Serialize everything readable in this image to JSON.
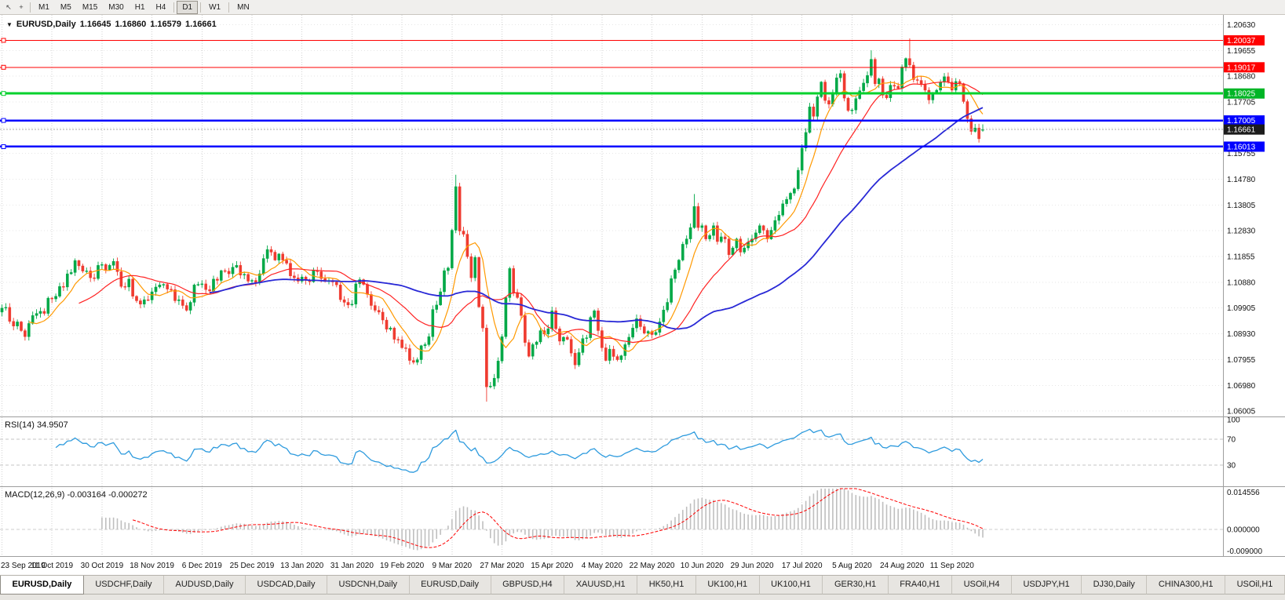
{
  "toolbar": {
    "icons": [
      {
        "name": "cursor-icon",
        "glyph": "↖"
      },
      {
        "name": "crosshair-icon",
        "glyph": "+"
      }
    ],
    "timeframes": [
      {
        "label": "M1",
        "active": false
      },
      {
        "label": "M5",
        "active": false
      },
      {
        "label": "M15",
        "active": false
      },
      {
        "label": "M30",
        "active": false
      },
      {
        "label": "H1",
        "active": false
      },
      {
        "label": "H4",
        "active": false
      },
      {
        "label": "D1",
        "active": true
      },
      {
        "label": "W1",
        "active": false
      },
      {
        "label": "MN",
        "active": false
      }
    ]
  },
  "chart": {
    "title": {
      "symbol_label": "EURUSD,Daily",
      "open": "1.16645",
      "high": "1.16860",
      "low": "1.16579",
      "close": "1.16661"
    },
    "axis": {
      "ticks": [
        "1.20630",
        "1.19655",
        "1.18680",
        "1.17705",
        "1.16730",
        "1.15755",
        "1.14780",
        "1.13805",
        "1.12830",
        "1.11855",
        "1.10880",
        "1.09905",
        "1.08930",
        "1.07955",
        "1.06980",
        "1.06005"
      ],
      "top_price": 1.21,
      "bottom_price": 1.058
    },
    "levels": [
      {
        "value": 1.20037,
        "label": "1.20037",
        "color": "#FF0000",
        "width": 1
      },
      {
        "value": 1.19017,
        "label": "1.19017",
        "color": "#FF0000",
        "width": 1
      },
      {
        "value": 1.18025,
        "label": "1.18025",
        "color": "#00D12C",
        "width": 3
      },
      {
        "value": 1.17005,
        "label": "1.17005",
        "color": "#0000FF",
        "width": 2.5
      },
      {
        "value": 1.16013,
        "label": "1.16013",
        "color": "#0000FF",
        "width": 2.5
      }
    ],
    "current_price": {
      "value": 1.16661,
      "label": "1.16661",
      "color": "#1C1C1C"
    }
  },
  "rsi": {
    "label": "RSI(14) 34.9507",
    "line_color": "#2E9BDE",
    "axis_labels": [
      {
        "value": 100,
        "text": "100",
        "dashed": false
      },
      {
        "value": 70,
        "text": "70",
        "dashed": true
      },
      {
        "value": 30,
        "text": "30",
        "dashed": true
      }
    ]
  },
  "macd": {
    "label": "MACD(12,26,9) -0.003164 -0.000272",
    "histogram_color": "#BFBFBF",
    "signal_color": "#FF0000",
    "axis_labels": [
      {
        "value": 0.014556,
        "text": "0.014556"
      },
      {
        "value": 0,
        "text": "0.000000"
      },
      {
        "value": -0.009,
        "text": "-0.009000"
      }
    ],
    "scale_max": 0.014556,
    "scale_min": -0.009
  },
  "dates": [
    "23 Sep 2019",
    "11 Oct 2019",
    "30 Oct 2019",
    "18 Nov 2019",
    "6 Dec 2019",
    "25 Dec 2019",
    "13 Jan 2020",
    "31 Jan 2020",
    "19 Feb 2020",
    "9 Mar 2020",
    "27 Mar 2020",
    "15 Apr 2020",
    "4 May 2020",
    "22 May 2020",
    "10 Jun 2020",
    "29 Jun 2020",
    "17 Jul 2020",
    "5 Aug 2020",
    "24 Aug 2020",
    "11 Sep 2020"
  ],
  "tabs": [
    {
      "label": "EURUSD,Daily",
      "active": true
    },
    {
      "label": "USDCHF,Daily",
      "active": false
    },
    {
      "label": "AUDUSD,Daily",
      "active": false
    },
    {
      "label": "USDCAD,Daily",
      "active": false
    },
    {
      "label": "USDCNH,Daily",
      "active": false
    },
    {
      "label": "EURUSD,Daily",
      "active": false
    },
    {
      "label": "GBPUSD,H4",
      "active": false
    },
    {
      "label": "XAUUSD,H1",
      "active": false
    },
    {
      "label": "HK50,H1",
      "active": false
    },
    {
      "label": "UK100,H1",
      "active": false
    },
    {
      "label": "UK100,H1",
      "active": false
    },
    {
      "label": "GER30,H1",
      "active": false
    },
    {
      "label": "FRA40,H1",
      "active": false
    },
    {
      "label": "USOil,H4",
      "active": false
    },
    {
      "label": "USDJPY,H1",
      "active": false
    },
    {
      "label": "DJ30,Daily",
      "active": false
    },
    {
      "label": "CHINA300,H1",
      "active": false
    },
    {
      "label": "USOil,H1",
      "active": false
    }
  ],
  "chart_data": {
    "type": "candlestick",
    "symbol": "EURUSD",
    "timeframe": "Daily",
    "title": "EURUSD,Daily 1.16645 1.16860 1.16579 1.16661",
    "price_range": [
      1.058,
      1.21
    ],
    "visible_bars": 256,
    "date_tick_step": 13,
    "up_color": "#00A847",
    "down_color": "#EF3B30",
    "closes": [
      1.099,
      1.0993,
      1.094,
      1.0922,
      1.0938,
      1.0905,
      1.0882,
      1.0932,
      1.0962,
      1.097,
      1.0978,
      1.097,
      1.1028,
      1.1025,
      1.1035,
      1.1072,
      1.107,
      1.112,
      1.1125,
      1.117,
      1.115,
      1.113,
      1.1131,
      1.1105,
      1.1102,
      1.1152,
      1.1155,
      1.1135,
      1.1152,
      1.1167,
      1.1128,
      1.1072,
      1.107,
      1.11,
      1.1035,
      1.1018,
      1.1005,
      1.1022,
      1.1021,
      1.1052,
      1.107,
      1.1078,
      1.108,
      1.1062,
      1.106,
      1.1018,
      1.1022,
      1.1,
      1.0982,
      1.1012,
      1.1078,
      1.108,
      1.1082,
      1.106,
      1.1055,
      1.11,
      1.1095,
      1.1132,
      1.113,
      1.112,
      1.1145,
      1.1152,
      1.1115,
      1.1118,
      1.1092,
      1.1095,
      1.1088,
      1.112,
      1.1178,
      1.1212,
      1.1202,
      1.1172,
      1.1195,
      1.1172,
      1.116,
      1.1112,
      1.1105,
      1.1092,
      1.1108,
      1.1095,
      1.109,
      1.1132,
      1.1128,
      1.1102,
      1.1092,
      1.1095,
      1.1089,
      1.1078,
      1.1022,
      1.1012,
      1.1002,
      1.1005,
      1.1082,
      1.1098,
      1.108,
      1.1042,
      1.1,
      1.0982,
      1.0975,
      1.0945,
      1.091,
      1.0915,
      1.0872,
      1.087,
      1.084,
      1.0837,
      1.0792,
      1.0785,
      1.0795,
      1.0848,
      1.0852,
      1.0882,
      1.0985,
      1.1002,
      1.1052,
      1.1132,
      1.1142,
      1.1285,
      1.145,
      1.1282,
      1.127,
      1.1185,
      1.1105,
      1.1182,
      1.0995,
      1.0915,
      1.0692,
      1.0695,
      1.0725,
      1.079,
      1.0882,
      1.103,
      1.114,
      1.1048,
      1.103,
      1.0962,
      1.086,
      1.0808,
      1.0852,
      1.0862,
      1.0905,
      1.0892,
      1.0912,
      1.098,
      1.0912,
      1.0865,
      1.088,
      1.0872,
      1.082,
      1.0775,
      1.0822,
      1.0875,
      1.0878,
      1.0955,
      1.098,
      1.0905,
      1.084,
      1.0792,
      1.0835,
      1.0807,
      1.0795,
      1.081,
      1.0852,
      1.088,
      1.0915,
      1.095,
      1.092,
      1.0895,
      1.0902,
      1.089,
      1.0898,
      1.0938,
      1.0983,
      1.1012,
      1.1102,
      1.1135,
      1.1172,
      1.1232,
      1.1252,
      1.1295,
      1.1375,
      1.1295,
      1.1302,
      1.1252,
      1.1265,
      1.1302,
      1.1242,
      1.126,
      1.1252,
      1.1192,
      1.1218,
      1.1252,
      1.1202,
      1.1218,
      1.124,
      1.1252,
      1.1275,
      1.1302,
      1.1285,
      1.1252,
      1.1285,
      1.1322,
      1.1342,
      1.1385,
      1.1402,
      1.1425,
      1.1442,
      1.1512,
      1.1596,
      1.1655,
      1.1752,
      1.1716,
      1.179,
      1.1846,
      1.1776,
      1.1762,
      1.1802,
      1.1862,
      1.1878,
      1.1785,
      1.1738,
      1.174,
      1.1783,
      1.1813,
      1.1842,
      1.1871,
      1.1932,
      1.1839,
      1.1858,
      1.1796,
      1.1786,
      1.1834,
      1.183,
      1.1822,
      1.1903,
      1.1935,
      1.191,
      1.1855,
      1.1852,
      1.1838,
      1.1815,
      1.1778,
      1.1802,
      1.1815,
      1.1845,
      1.1866,
      1.1846,
      1.1815,
      1.1848,
      1.184,
      1.1772,
      1.1707,
      1.1659,
      1.1672,
      1.1631,
      1.1666
    ],
    "overrides": {
      "118": {
        "h": 1.1495
      },
      "126": {
        "l": 1.0636
      },
      "180": {
        "h": 1.1422
      },
      "226": {
        "h": 1.1966
      },
      "236": {
        "h": 1.2011
      },
      "255": {
        "o": 1.16645,
        "h": 1.1686,
        "l": 1.16579,
        "c": 1.16661
      }
    },
    "moving_averages": [
      {
        "name": "fast",
        "period": 8,
        "color": "#FF9900",
        "width": 1.2
      },
      {
        "name": "mid",
        "period": 21,
        "color": "#FF2222",
        "width": 1.2
      },
      {
        "name": "slow",
        "period": 55,
        "color": "#2929D6",
        "width": 1.8
      }
    ],
    "indicators": [
      {
        "name": "RSI",
        "period": 14,
        "last_value": 34.9507
      },
      {
        "name": "MACD",
        "fast": 12,
        "slow": 26,
        "signal": 9,
        "last_values": [
          -0.003164,
          -0.000272
        ]
      }
    ]
  }
}
